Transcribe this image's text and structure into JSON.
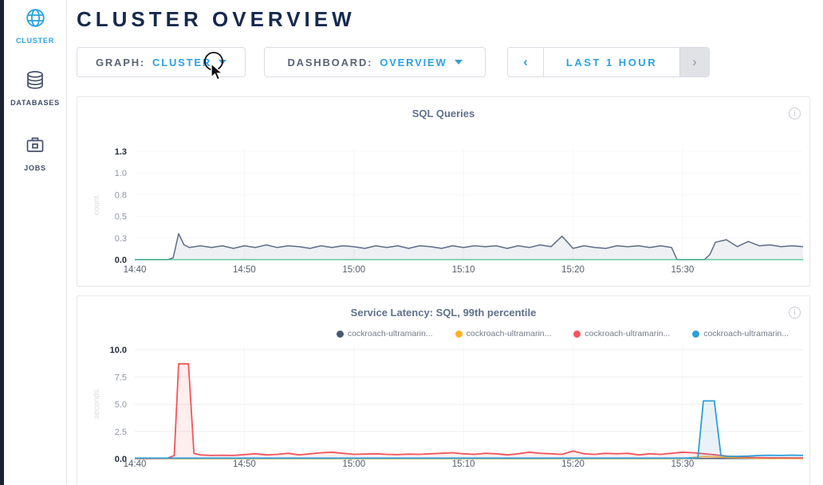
{
  "header": {
    "title": "CLUSTER OVERVIEW"
  },
  "sidebar": {
    "items": [
      {
        "id": "cluster",
        "label": "CLUSTER",
        "icon": "globe-icon",
        "active": true
      },
      {
        "id": "databases",
        "label": "DATABASES",
        "icon": "database-icon",
        "active": false
      },
      {
        "id": "jobs",
        "label": "JOBS",
        "icon": "briefcase-icon",
        "active": false
      }
    ]
  },
  "controls": {
    "graph": {
      "label": "GRAPH:",
      "value": "CLUSTER"
    },
    "dashboard": {
      "label": "DASHBOARD:",
      "value": "OVERVIEW"
    },
    "timewindow": {
      "prev": "‹",
      "label": "LAST 1 HOUR",
      "next": "›"
    }
  },
  "info_icon_glyph": "i",
  "colors": {
    "accent_blue": "#2aa2e4",
    "title_navy": "#16294d",
    "sidebar_text": "#3f4c66",
    "chart_title": "#5f718e",
    "zero_line_green": "#43c08f",
    "series_slate": "#5d6c88",
    "series_navy": "#475872",
    "series_yellow": "#fdb128",
    "series_red": "#f2555c",
    "series_blue": "#2d9fd8"
  },
  "chart_data": [
    {
      "type": "area",
      "title": "SQL Queries",
      "ylabel": "count",
      "xlabel": "",
      "x_domain": [
        0,
        61
      ],
      "x_unit": "minutes-after-14:40",
      "y_domain": [
        0,
        1.25
      ],
      "grid": true,
      "legend_position": "none",
      "zero_line_color": "#43c08f",
      "zero_line_on_top": true,
      "y_ticks": [
        {
          "label": "1.3",
          "value": 1.25,
          "strong": true
        },
        {
          "label": "1.0",
          "value": 1.0,
          "strong": false
        },
        {
          "label": "0.8",
          "value": 0.75,
          "strong": false
        },
        {
          "label": "0.5",
          "value": 0.5,
          "strong": false
        },
        {
          "label": "0.3",
          "value": 0.25,
          "strong": false
        },
        {
          "label": "0.0",
          "value": 0,
          "strong": true
        }
      ],
      "x_ticks": [
        {
          "label": "14:40",
          "value": 0
        },
        {
          "label": "14:50",
          "value": 10
        },
        {
          "label": "15:00",
          "value": 20
        },
        {
          "label": "15:10",
          "value": 30
        },
        {
          "label": "15:20",
          "value": 40
        },
        {
          "label": "15:30",
          "value": 50
        }
      ],
      "series": [
        {
          "name": "sql-queries-count",
          "color": "#5d6c88",
          "fill": "rgba(93,108,136,0.10)",
          "width": 1.5,
          "points": [
            [
              0,
              0
            ],
            [
              1,
              0
            ],
            [
              2,
              0
            ],
            [
              3,
              0
            ],
            [
              3.5,
              0.02
            ],
            [
              4,
              0.3
            ],
            [
              4.5,
              0.17
            ],
            [
              5,
              0.14
            ],
            [
              6,
              0.16
            ],
            [
              7,
              0.14
            ],
            [
              8,
              0.16
            ],
            [
              9,
              0.13
            ],
            [
              10,
              0.16
            ],
            [
              11,
              0.14
            ],
            [
              12,
              0.17
            ],
            [
              13,
              0.14
            ],
            [
              14,
              0.16
            ],
            [
              15,
              0.15
            ],
            [
              16,
              0.13
            ],
            [
              17,
              0.16
            ],
            [
              18,
              0.14
            ],
            [
              19,
              0.16
            ],
            [
              20,
              0.15
            ],
            [
              21,
              0.13
            ],
            [
              22,
              0.16
            ],
            [
              23,
              0.14
            ],
            [
              24,
              0.16
            ],
            [
              25,
              0.13
            ],
            [
              26,
              0.16
            ],
            [
              27,
              0.15
            ],
            [
              28,
              0.13
            ],
            [
              29,
              0.16
            ],
            [
              30,
              0.14
            ],
            [
              31,
              0.16
            ],
            [
              32,
              0.15
            ],
            [
              33,
              0.16
            ],
            [
              34,
              0.13
            ],
            [
              35,
              0.16
            ],
            [
              36,
              0.14
            ],
            [
              37,
              0.17
            ],
            [
              38,
              0.15
            ],
            [
              39,
              0.27
            ],
            [
              40,
              0.13
            ],
            [
              41,
              0.16
            ],
            [
              42,
              0.14
            ],
            [
              43,
              0.13
            ],
            [
              44,
              0.16
            ],
            [
              45,
              0.15
            ],
            [
              46,
              0.16
            ],
            [
              47,
              0.14
            ],
            [
              48,
              0.16
            ],
            [
              49,
              0.14
            ],
            [
              49.5,
              0
            ],
            [
              52,
              0
            ],
            [
              52.5,
              0.06
            ],
            [
              53,
              0.2
            ],
            [
              54,
              0.23
            ],
            [
              55,
              0.15
            ],
            [
              56,
              0.21
            ],
            [
              57,
              0.16
            ],
            [
              58,
              0.17
            ],
            [
              59,
              0.15
            ],
            [
              60,
              0.16
            ],
            [
              61,
              0.15
            ]
          ]
        }
      ]
    },
    {
      "type": "area",
      "title": "Service Latency: SQL, 99th percentile",
      "ylabel": "seconds",
      "xlabel": "",
      "x_domain": [
        0,
        61
      ],
      "x_unit": "minutes-after-14:40",
      "y_domain": [
        0,
        10
      ],
      "grid": true,
      "legend_position": "top-right",
      "zero_line_color": "#b9bec7",
      "zero_line_on_top": false,
      "y_ticks": [
        {
          "label": "10.0",
          "value": 10,
          "strong": true
        },
        {
          "label": "7.5",
          "value": 7.5,
          "strong": false
        },
        {
          "label": "5.0",
          "value": 5.0,
          "strong": false
        },
        {
          "label": "2.5",
          "value": 2.5,
          "strong": false
        },
        {
          "label": "0.0",
          "value": 0,
          "strong": true
        }
      ],
      "x_ticks": [
        {
          "label": "14:40",
          "value": 0
        },
        {
          "label": "14:50",
          "value": 10
        },
        {
          "label": "15:00",
          "value": 20
        },
        {
          "label": "15:10",
          "value": 30
        },
        {
          "label": "15:20",
          "value": 40
        },
        {
          "label": "15:30",
          "value": 50
        }
      ],
      "series": [
        {
          "name": "latency-node-1",
          "legend_label": "cockroach-ultramarin...",
          "color": "#475872",
          "fill": "none",
          "width": 1.4,
          "points": [
            [
              0,
              0.02
            ],
            [
              61,
              0.02
            ]
          ]
        },
        {
          "name": "latency-node-2",
          "legend_label": "cockroach-ultramarin...",
          "color": "#fdb128",
          "fill": "none",
          "width": 1.6,
          "points": [
            [
              0,
              0.01
            ],
            [
              50,
              0.01
            ],
            [
              51,
              0.12
            ],
            [
              52,
              0.2
            ],
            [
              53,
              0.16
            ],
            [
              54,
              0.12
            ],
            [
              55,
              0.09
            ],
            [
              56,
              0.05
            ],
            [
              57,
              0.02
            ],
            [
              61,
              0.02
            ]
          ]
        },
        {
          "name": "latency-node-3",
          "legend_label": "cockroach-ultramarin...",
          "color": "#f2555c",
          "fill": "rgba(242,85,92,0.10)",
          "width": 1.8,
          "points": [
            [
              0,
              0.02
            ],
            [
              1,
              0.02
            ],
            [
              2,
              0.03
            ],
            [
              3,
              0.05
            ],
            [
              3.6,
              0.3
            ],
            [
              4.0,
              8.7
            ],
            [
              4.9,
              8.7
            ],
            [
              5.4,
              0.5
            ],
            [
              6,
              0.35
            ],
            [
              7,
              0.3
            ],
            [
              8,
              0.32
            ],
            [
              9,
              0.3
            ],
            [
              10,
              0.38
            ],
            [
              11,
              0.45
            ],
            [
              12,
              0.35
            ],
            [
              13,
              0.4
            ],
            [
              14,
              0.5
            ],
            [
              15,
              0.35
            ],
            [
              16,
              0.45
            ],
            [
              17,
              0.55
            ],
            [
              18,
              0.6
            ],
            [
              19,
              0.5
            ],
            [
              20,
              0.4
            ],
            [
              21,
              0.42
            ],
            [
              22,
              0.45
            ],
            [
              23,
              0.4
            ],
            [
              24,
              0.38
            ],
            [
              25,
              0.42
            ],
            [
              26,
              0.4
            ],
            [
              27,
              0.45
            ],
            [
              28,
              0.5
            ],
            [
              29,
              0.55
            ],
            [
              30,
              0.45
            ],
            [
              31,
              0.4
            ],
            [
              32,
              0.5
            ],
            [
              33,
              0.45
            ],
            [
              34,
              0.35
            ],
            [
              35,
              0.45
            ],
            [
              36,
              0.6
            ],
            [
              37,
              0.5
            ],
            [
              38,
              0.45
            ],
            [
              39,
              0.4
            ],
            [
              40,
              0.7
            ],
            [
              41,
              0.45
            ],
            [
              42,
              0.4
            ],
            [
              43,
              0.5
            ],
            [
              44,
              0.45
            ],
            [
              45,
              0.5
            ],
            [
              46,
              0.35
            ],
            [
              47,
              0.45
            ],
            [
              48,
              0.4
            ],
            [
              49,
              0.5
            ],
            [
              50,
              0.6
            ],
            [
              51,
              0.55
            ],
            [
              52,
              0.45
            ],
            [
              53,
              0.35
            ],
            [
              54,
              0.25
            ],
            [
              55,
              0.18
            ],
            [
              56,
              0.12
            ],
            [
              57,
              0.1
            ],
            [
              58,
              0.08
            ],
            [
              59,
              0.08
            ],
            [
              60,
              0.07
            ],
            [
              61,
              0.07
            ]
          ]
        },
        {
          "name": "latency-node-4",
          "legend_label": "cockroach-ultramarin...",
          "color": "#2d9fd8",
          "fill": "rgba(70,150,200,0.12)",
          "width": 1.8,
          "points": [
            [
              0,
              0.05
            ],
            [
              10,
              0.05
            ],
            [
              20,
              0.05
            ],
            [
              30,
              0.05
            ],
            [
              40,
              0.05
            ],
            [
              50,
              0.05
            ],
            [
              51.4,
              0.08
            ],
            [
              51.9,
              5.3
            ],
            [
              52.9,
              5.3
            ],
            [
              53.5,
              0.3
            ],
            [
              54,
              0.22
            ],
            [
              55,
              0.22
            ],
            [
              56,
              0.24
            ],
            [
              57,
              0.3
            ],
            [
              58,
              0.32
            ],
            [
              59,
              0.3
            ],
            [
              60,
              0.33
            ],
            [
              61,
              0.3
            ]
          ]
        }
      ]
    }
  ]
}
